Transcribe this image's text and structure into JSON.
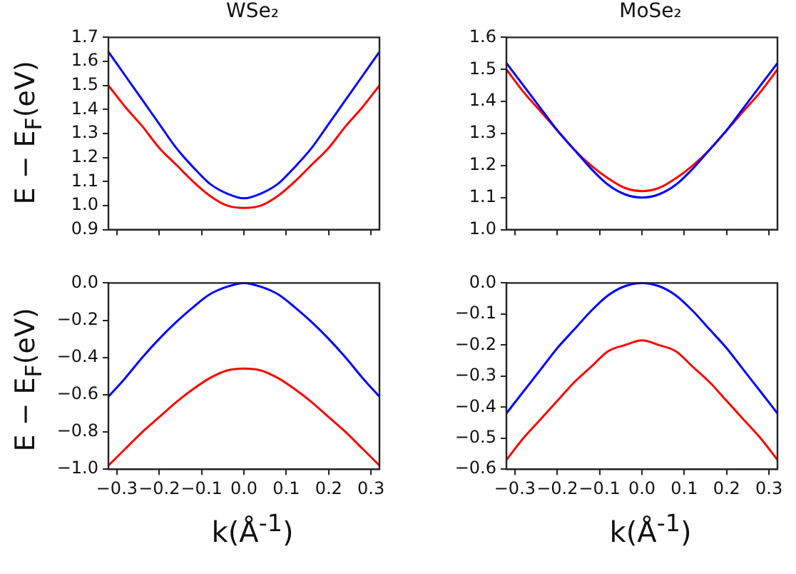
{
  "chart_data": [
    {
      "type": "line",
      "title": "WSe₂",
      "ylabel": "E − E$_{F}$(eV)",
      "x": [
        -0.32,
        -0.28,
        -0.24,
        -0.2,
        -0.16,
        -0.12,
        -0.08,
        -0.04,
        0,
        0.04,
        0.08,
        0.12,
        0.16,
        0.2,
        0.24,
        0.28,
        0.32
      ],
      "series": [
        {
          "color": "#0000ff",
          "values": [
            1.64,
            1.54,
            1.44,
            1.34,
            1.24,
            1.16,
            1.09,
            1.05,
            1.03,
            1.05,
            1.09,
            1.16,
            1.24,
            1.34,
            1.44,
            1.54,
            1.64
          ]
        },
        {
          "color": "#ff0000",
          "values": [
            1.5,
            1.41,
            1.33,
            1.24,
            1.17,
            1.1,
            1.04,
            1.0,
            0.99,
            1.0,
            1.04,
            1.1,
            1.17,
            1.24,
            1.33,
            1.41,
            1.5
          ]
        }
      ],
      "xlim": [
        -0.32,
        0.32
      ],
      "xticks": [
        -0.3,
        -0.2,
        -0.1,
        0,
        0.1,
        0.2,
        0.3
      ],
      "ylim": [
        0.9,
        1.7
      ],
      "yticks": [
        0.9,
        {
          "value": 1,
          "label": "1.0"
        },
        1.1,
        1.2,
        1.3,
        1.4,
        1.5,
        1.6,
        1.7
      ],
      "tick_labels": "y",
      "marker": "none",
      "line_style": "solid"
    },
    {
      "type": "line",
      "title": "MoSe₂",
      "x": [
        -0.32,
        -0.28,
        -0.24,
        -0.2,
        -0.16,
        -0.12,
        -0.08,
        -0.04,
        0,
        0.04,
        0.08,
        0.12,
        0.16,
        0.2,
        0.24,
        0.28,
        0.32
      ],
      "series": [
        {
          "color": "#0000ff",
          "values": [
            1.52,
            1.45,
            1.38,
            1.31,
            1.25,
            1.19,
            1.14,
            1.11,
            1.1,
            1.11,
            1.14,
            1.19,
            1.25,
            1.31,
            1.38,
            1.45,
            1.52
          ]
        },
        {
          "color": "#ff0000",
          "values": [
            1.5,
            1.43,
            1.37,
            1.31,
            1.25,
            1.2,
            1.16,
            1.13,
            1.12,
            1.13,
            1.16,
            1.2,
            1.25,
            1.31,
            1.37,
            1.43,
            1.5
          ]
        }
      ],
      "xlim": [
        -0.32,
        0.32
      ],
      "xticks": [
        -0.3,
        -0.2,
        -0.1,
        0,
        0.1,
        0.2,
        0.3
      ],
      "ylim": [
        1.0,
        1.6
      ],
      "yticks": [
        {
          "value": 1,
          "label": "1.0"
        },
        1.1,
        1.2,
        1.3,
        1.4,
        1.5,
        1.6
      ],
      "tick_labels": "y",
      "marker": "none",
      "line_style": "solid"
    },
    {
      "type": "line",
      "xlabel": "k(Å$^{-1}$)",
      "ylabel": "E − E$_{F}$(eV)",
      "x": [
        -0.32,
        -0.28,
        -0.24,
        -0.2,
        -0.16,
        -0.12,
        -0.08,
        -0.04,
        0,
        0.04,
        0.08,
        0.12,
        0.16,
        0.2,
        0.24,
        0.28,
        0.32
      ],
      "series": [
        {
          "color": "#0000ff",
          "values": [
            -0.61,
            -0.51,
            -0.4,
            -0.3,
            -0.21,
            -0.13,
            -0.06,
            -0.02,
            0,
            -0.02,
            -0.06,
            -0.13,
            -0.21,
            -0.3,
            -0.4,
            -0.51,
            -0.61
          ]
        },
        {
          "color": "#ff0000",
          "values": [
            -0.98,
            -0.89,
            -0.8,
            -0.72,
            -0.64,
            -0.57,
            -0.51,
            -0.47,
            -0.46,
            -0.47,
            -0.51,
            -0.57,
            -0.64,
            -0.72,
            -0.8,
            -0.89,
            -0.98
          ]
        }
      ],
      "xlim": [
        -0.32,
        0.32
      ],
      "xticks": [
        -0.3,
        -0.2,
        -0.1,
        {
          "value": 0,
          "label": "0.0"
        },
        0.1,
        0.2,
        0.3
      ],
      "ylim": [
        -1.0,
        0
      ],
      "yticks": [
        {
          "value": -1,
          "label": "−1.0"
        },
        -0.8,
        -0.6,
        -0.4,
        -0.2,
        {
          "value": 0,
          "label": "0.0"
        }
      ],
      "marker": "none",
      "line_style": "solid"
    },
    {
      "type": "line",
      "xlabel": "k(Å$^{-1}$)",
      "x": [
        -0.32,
        -0.28,
        -0.24,
        -0.2,
        -0.16,
        -0.12,
        -0.08,
        -0.04,
        0,
        0.04,
        0.08,
        0.12,
        0.16,
        0.2,
        0.24,
        0.28,
        0.32
      ],
      "series": [
        {
          "color": "#0000ff",
          "values": [
            -0.42,
            -0.35,
            -0.28,
            -0.21,
            -0.15,
            -0.09,
            -0.04,
            -0.01,
            0,
            -0.01,
            -0.04,
            -0.09,
            -0.15,
            -0.21,
            -0.28,
            -0.35,
            -0.42
          ]
        },
        {
          "color": "#ff0000",
          "values": [
            -0.57,
            -0.5,
            -0.44,
            -0.38,
            -0.32,
            -0.27,
            -0.22,
            -0.2,
            -0.185,
            -0.2,
            -0.22,
            -0.27,
            -0.32,
            -0.38,
            -0.44,
            -0.5,
            -0.57
          ]
        }
      ],
      "xlim": [
        -0.32,
        0.32
      ],
      "xticks": [
        -0.3,
        -0.2,
        -0.1,
        {
          "value": 0,
          "label": "0.0"
        },
        0.1,
        0.2,
        0.3
      ],
      "ylim": [
        -0.6,
        0
      ],
      "yticks": [
        {
          "value": -0.6,
          "label": "−0.6"
        },
        -0.5,
        -0.4,
        -0.3,
        -0.2,
        -0.1,
        {
          "value": 0,
          "label": "0.0"
        }
      ],
      "marker": "none",
      "line_style": "solid"
    }
  ]
}
